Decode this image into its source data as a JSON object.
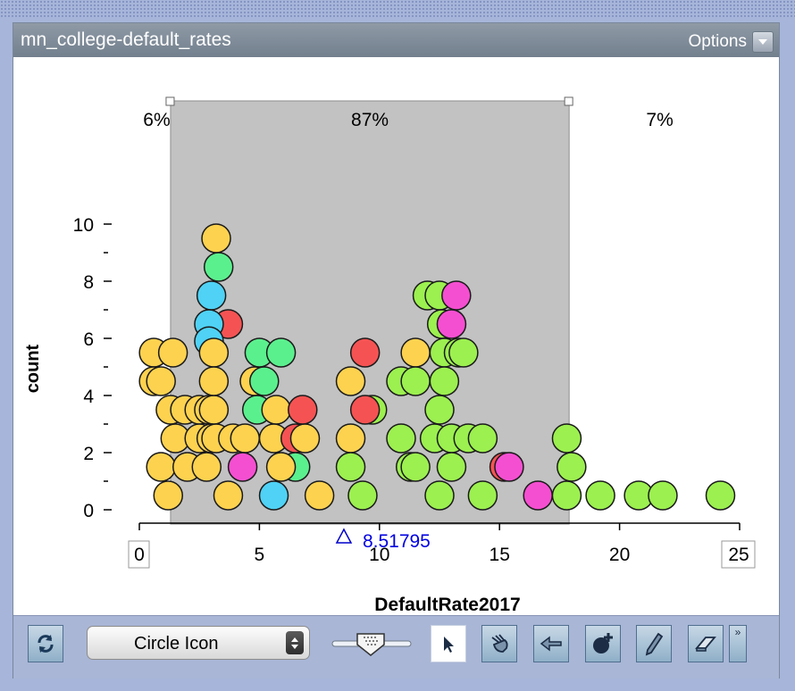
{
  "window": {
    "title": "mn_college-default_rates",
    "options_label": "Options"
  },
  "chart_data": {
    "type": "dotplot",
    "xlabel": "DefaultRate2017",
    "ylabel": "count",
    "xlim": [
      0,
      25
    ],
    "ylim": [
      0,
      10
    ],
    "x_ticks": [
      0,
      5,
      10,
      15,
      20,
      25
    ],
    "y_ticks": [
      0,
      2,
      4,
      6,
      8,
      10
    ],
    "x_axis_min_label": "0",
    "x_axis_max_label": "25",
    "region_percents": [
      "6%",
      "87%",
      "7%"
    ],
    "region_bounds": [
      1.3,
      17.9
    ],
    "movable_value": {
      "label": "8.51795",
      "value": 8.51795
    },
    "colors": {
      "yellow": "#fdd24f",
      "lime": "#9cf04f",
      "green": "#5bf08e",
      "red": "#f55353",
      "magenta": "#f54fd1",
      "cyan": "#4fd2f5"
    },
    "points": [
      {
        "x": 0.6,
        "y": 5.5,
        "c": "yellow"
      },
      {
        "x": 1.4,
        "y": 5.5,
        "c": "yellow"
      },
      {
        "x": 0.6,
        "y": 4.5,
        "c": "yellow"
      },
      {
        "x": 0.9,
        "y": 4.5,
        "c": "yellow"
      },
      {
        "x": 1.3,
        "y": 3.5,
        "c": "yellow"
      },
      {
        "x": 1.9,
        "y": 3.5,
        "c": "yellow"
      },
      {
        "x": 2.5,
        "y": 3.5,
        "c": "yellow"
      },
      {
        "x": 2.9,
        "y": 3.5,
        "c": "yellow"
      },
      {
        "x": 3.1,
        "y": 3.5,
        "c": "yellow"
      },
      {
        "x": 1.5,
        "y": 2.5,
        "c": "yellow"
      },
      {
        "x": 2.5,
        "y": 2.5,
        "c": "yellow"
      },
      {
        "x": 3.0,
        "y": 2.5,
        "c": "yellow"
      },
      {
        "x": 3.2,
        "y": 2.5,
        "c": "yellow"
      },
      {
        "x": 3.9,
        "y": 2.5,
        "c": "yellow"
      },
      {
        "x": 0.9,
        "y": 1.5,
        "c": "yellow"
      },
      {
        "x": 2.0,
        "y": 1.5,
        "c": "yellow"
      },
      {
        "x": 2.8,
        "y": 1.5,
        "c": "yellow"
      },
      {
        "x": 1.2,
        "y": 0.5,
        "c": "yellow"
      },
      {
        "x": 3.7,
        "y": 0.5,
        "c": "yellow"
      },
      {
        "x": 3.2,
        "y": 9.5,
        "c": "yellow"
      },
      {
        "x": 3.3,
        "y": 8.5,
        "c": "green"
      },
      {
        "x": 3.0,
        "y": 7.5,
        "c": "cyan"
      },
      {
        "x": 3.7,
        "y": 6.5,
        "c": "red"
      },
      {
        "x": 2.9,
        "y": 6.5,
        "c": "cyan"
      },
      {
        "x": 2.9,
        "y": 5.9,
        "c": "cyan"
      },
      {
        "x": 3.1,
        "y": 5.5,
        "c": "yellow"
      },
      {
        "x": 3.1,
        "y": 4.5,
        "c": "yellow"
      },
      {
        "x": 4.8,
        "y": 4.5,
        "c": "yellow"
      },
      {
        "x": 5.0,
        "y": 5.5,
        "c": "green"
      },
      {
        "x": 5.2,
        "y": 4.5,
        "c": "green"
      },
      {
        "x": 5.9,
        "y": 5.5,
        "c": "green"
      },
      {
        "x": 4.9,
        "y": 3.5,
        "c": "green"
      },
      {
        "x": 5.7,
        "y": 3.5,
        "c": "yellow"
      },
      {
        "x": 6.8,
        "y": 3.5,
        "c": "red"
      },
      {
        "x": 4.4,
        "y": 2.5,
        "c": "yellow"
      },
      {
        "x": 5.6,
        "y": 2.5,
        "c": "yellow"
      },
      {
        "x": 6.5,
        "y": 2.5,
        "c": "red"
      },
      {
        "x": 6.9,
        "y": 2.5,
        "c": "yellow"
      },
      {
        "x": 4.3,
        "y": 1.5,
        "c": "magenta"
      },
      {
        "x": 6.5,
        "y": 1.5,
        "c": "green"
      },
      {
        "x": 5.9,
        "y": 1.5,
        "c": "yellow"
      },
      {
        "x": 5.6,
        "y": 0.5,
        "c": "cyan"
      },
      {
        "x": 7.5,
        "y": 0.5,
        "c": "yellow"
      },
      {
        "x": 8.8,
        "y": 4.5,
        "c": "yellow"
      },
      {
        "x": 8.8,
        "y": 2.5,
        "c": "yellow"
      },
      {
        "x": 8.8,
        "y": 1.5,
        "c": "lime"
      },
      {
        "x": 9.4,
        "y": 5.5,
        "c": "red"
      },
      {
        "x": 9.7,
        "y": 3.5,
        "c": "lime"
      },
      {
        "x": 9.4,
        "y": 3.5,
        "c": "red"
      },
      {
        "x": 9.3,
        "y": 0.5,
        "c": "lime"
      },
      {
        "x": 10.9,
        "y": 4.5,
        "c": "lime"
      },
      {
        "x": 11.5,
        "y": 5.5,
        "c": "yellow"
      },
      {
        "x": 11.5,
        "y": 4.5,
        "c": "lime"
      },
      {
        "x": 10.9,
        "y": 2.5,
        "c": "lime"
      },
      {
        "x": 11.3,
        "y": 1.5,
        "c": "lime"
      },
      {
        "x": 11.5,
        "y": 1.5,
        "c": "lime"
      },
      {
        "x": 12.0,
        "y": 7.5,
        "c": "lime"
      },
      {
        "x": 12.5,
        "y": 7.5,
        "c": "lime"
      },
      {
        "x": 13.2,
        "y": 7.5,
        "c": "magenta"
      },
      {
        "x": 12.6,
        "y": 6.5,
        "c": "lime"
      },
      {
        "x": 13.0,
        "y": 6.5,
        "c": "magenta"
      },
      {
        "x": 12.7,
        "y": 5.5,
        "c": "lime"
      },
      {
        "x": 13.3,
        "y": 5.5,
        "c": "lime"
      },
      {
        "x": 13.5,
        "y": 5.5,
        "c": "lime"
      },
      {
        "x": 12.7,
        "y": 4.5,
        "c": "lime"
      },
      {
        "x": 12.5,
        "y": 3.5,
        "c": "lime"
      },
      {
        "x": 12.3,
        "y": 2.5,
        "c": "lime"
      },
      {
        "x": 13.0,
        "y": 2.5,
        "c": "lime"
      },
      {
        "x": 13.7,
        "y": 2.5,
        "c": "lime"
      },
      {
        "x": 14.3,
        "y": 2.5,
        "c": "lime"
      },
      {
        "x": 13.0,
        "y": 1.5,
        "c": "lime"
      },
      {
        "x": 12.5,
        "y": 0.5,
        "c": "lime"
      },
      {
        "x": 14.3,
        "y": 0.5,
        "c": "lime"
      },
      {
        "x": 15.2,
        "y": 1.5,
        "c": "red"
      },
      {
        "x": 15.4,
        "y": 1.5,
        "c": "magenta"
      },
      {
        "x": 16.6,
        "y": 0.5,
        "c": "magenta"
      },
      {
        "x": 17.8,
        "y": 2.5,
        "c": "lime"
      },
      {
        "x": 18.0,
        "y": 1.5,
        "c": "lime"
      },
      {
        "x": 17.8,
        "y": 0.5,
        "c": "lime"
      },
      {
        "x": 19.2,
        "y": 0.5,
        "c": "lime"
      },
      {
        "x": 20.8,
        "y": 0.5,
        "c": "lime"
      },
      {
        "x": 21.8,
        "y": 0.5,
        "c": "lime"
      },
      {
        "x": 24.2,
        "y": 0.5,
        "c": "lime"
      }
    ]
  },
  "toolbar": {
    "refresh_icon": "refresh-icon",
    "point_type_select": "Circle Icon",
    "point_size_slider": "point-size-slider",
    "tools": [
      "select-arrow-icon",
      "hand-pointer-icon",
      "back-arrow-icon",
      "add-point-icon",
      "pencil-icon",
      "eraser-icon"
    ],
    "more_glyph": "»"
  }
}
